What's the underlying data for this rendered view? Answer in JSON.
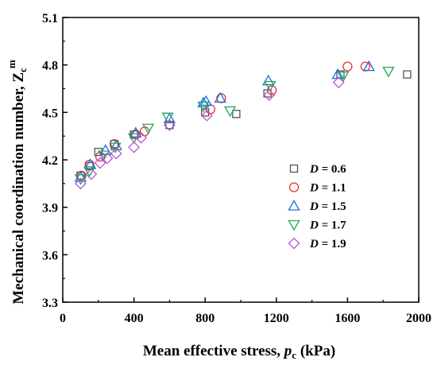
{
  "chart_data": {
    "type": "scatter",
    "xlabel": {
      "main": "Mean effective stress, ",
      "symbol": "p",
      "sub": "c",
      "unit": " (kPa)"
    },
    "ylabel": {
      "main": "Mechanical coordination number, ",
      "symbol": "Z",
      "sub": "c",
      "sup": "m"
    },
    "xlim": [
      0,
      2000
    ],
    "ylim": [
      3.3,
      5.1
    ],
    "xticks": [
      "0",
      "400",
      "800",
      "1200",
      "1600",
      "2000"
    ],
    "yticks": [
      "3.3",
      "3.6",
      "3.9",
      "4.2",
      "4.5",
      "4.8",
      "5.1"
    ],
    "grid": false,
    "legend_position": "right-middle",
    "series": [
      {
        "name": "D = 0.6",
        "var": "D",
        "eq": " = 0.6",
        "marker": "square",
        "color": "#555555",
        "points": [
          [
            100,
            4.1
          ],
          [
            150,
            4.16
          ],
          [
            200,
            4.25
          ],
          [
            290,
            4.3
          ],
          [
            400,
            4.36
          ],
          [
            600,
            4.42
          ],
          [
            800,
            4.5
          ],
          [
            975,
            4.49
          ],
          [
            1150,
            4.62
          ],
          [
            1560,
            4.74
          ],
          [
            1935,
            4.74
          ]
        ]
      },
      {
        "name": "D = 1.1",
        "var": "D",
        "eq": " = 1.1",
        "marker": "circle",
        "color": "#e8342e",
        "points": [
          [
            105,
            4.1
          ],
          [
            150,
            4.17
          ],
          [
            210,
            4.22
          ],
          [
            290,
            4.3
          ],
          [
            410,
            4.36
          ],
          [
            460,
            4.38
          ],
          [
            830,
            4.52
          ],
          [
            890,
            4.59
          ],
          [
            1175,
            4.64
          ],
          [
            1600,
            4.79
          ],
          [
            1700,
            4.79
          ]
        ]
      },
      {
        "name": "D = 1.5",
        "var": "D",
        "eq": " = 1.5",
        "marker": "triangle-up",
        "color": "#1a6fd6",
        "points": [
          [
            100,
            4.09
          ],
          [
            155,
            4.17
          ],
          [
            240,
            4.26
          ],
          [
            300,
            4.29
          ],
          [
            410,
            4.37
          ],
          [
            600,
            4.46
          ],
          [
            790,
            4.56
          ],
          [
            805,
            4.57
          ],
          [
            885,
            4.59
          ],
          [
            1155,
            4.7
          ],
          [
            1545,
            4.74
          ],
          [
            1720,
            4.79
          ]
        ]
      },
      {
        "name": "D = 1.7",
        "var": "D",
        "eq": " = 1.7",
        "marker": "triangle-down",
        "color": "#1fa85a",
        "points": [
          [
            100,
            4.08
          ],
          [
            150,
            4.13
          ],
          [
            230,
            4.23
          ],
          [
            295,
            4.28
          ],
          [
            400,
            4.34
          ],
          [
            480,
            4.4
          ],
          [
            590,
            4.47
          ],
          [
            790,
            4.54
          ],
          [
            940,
            4.51
          ],
          [
            1165,
            4.67
          ],
          [
            1575,
            4.73
          ],
          [
            1830,
            4.76
          ]
        ]
      },
      {
        "name": "D = 1.9",
        "var": "D",
        "eq": " = 1.9",
        "marker": "diamond",
        "color": "#b455d4",
        "points": [
          [
            100,
            4.05
          ],
          [
            160,
            4.11
          ],
          [
            210,
            4.18
          ],
          [
            250,
            4.21
          ],
          [
            300,
            4.24
          ],
          [
            400,
            4.28
          ],
          [
            440,
            4.34
          ],
          [
            600,
            4.42
          ],
          [
            810,
            4.48
          ],
          [
            1160,
            4.61
          ],
          [
            1550,
            4.69
          ]
        ]
      }
    ]
  }
}
